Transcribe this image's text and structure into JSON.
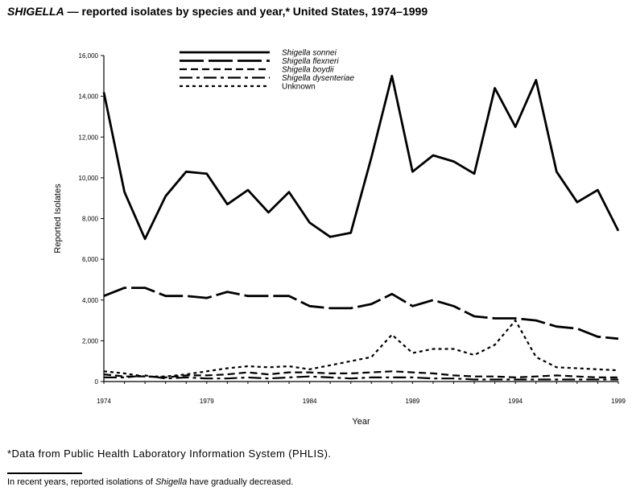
{
  "title": {
    "species_word": "SHIGELLA",
    "rest": " — reported isolates by species and year,* United States, 1974–1999"
  },
  "footnote": "*Data from Public Health Laboratory Information System (PHLIS).",
  "summary": {
    "before": "In recent years, reported isolations of ",
    "italic": "Shigella",
    "after": " have gradually decreased."
  },
  "chart_data": {
    "type": "line",
    "title": "SHIGELLA — reported isolates by species and year,* United States, 1974–1999",
    "xlabel": "Year",
    "ylabel": "Reported Isolates",
    "xlim": [
      1974,
      1999
    ],
    "ylim": [
      0,
      16000
    ],
    "x_ticks": [
      1974,
      1979,
      1984,
      1989,
      1994,
      1999
    ],
    "y_ticks": [
      0,
      2000,
      4000,
      6000,
      8000,
      10000,
      12000,
      14000,
      16000
    ],
    "y_tick_labels": [
      "0",
      "2,000",
      "4,000",
      "6,000",
      "8,000",
      "10,000",
      "12,000",
      "14,000",
      "16,000"
    ],
    "legend_position": "top-center",
    "grid": false,
    "x": [
      1974,
      1975,
      1976,
      1977,
      1978,
      1979,
      1980,
      1981,
      1982,
      1983,
      1984,
      1985,
      1986,
      1987,
      1988,
      1989,
      1990,
      1991,
      1992,
      1993,
      1994,
      1995,
      1996,
      1997,
      1998,
      1999
    ],
    "series": [
      {
        "name": "Shigella sonnei",
        "style": "solid",
        "values": [
          14200,
          9300,
          7000,
          9100,
          10300,
          10200,
          8700,
          9400,
          8300,
          9300,
          7800,
          7100,
          7300,
          11000,
          15000,
          10300,
          11100,
          10800,
          10200,
          14400,
          12500,
          14800,
          10300,
          8800,
          9400,
          7400
        ]
      },
      {
        "name": "Shigella flexneri",
        "style": "longdash",
        "values": [
          4200,
          4600,
          4600,
          4200,
          4200,
          4100,
          4400,
          4200,
          4200,
          4200,
          3700,
          3600,
          3600,
          3800,
          4300,
          3700,
          4000,
          3700,
          3200,
          3100,
          3100,
          3000,
          2700,
          2600,
          2200,
          2100
        ]
      },
      {
        "name": "Shigella boydii",
        "style": "dash",
        "values": [
          350,
          250,
          250,
          200,
          300,
          300,
          350,
          450,
          350,
          450,
          450,
          400,
          400,
          450,
          500,
          450,
          400,
          300,
          250,
          250,
          200,
          250,
          300,
          250,
          200,
          200
        ]
      },
      {
        "name": "Shigella dysenteriae",
        "style": "dashdot",
        "values": [
          200,
          200,
          300,
          150,
          200,
          150,
          150,
          200,
          150,
          200,
          250,
          200,
          150,
          200,
          200,
          200,
          150,
          150,
          100,
          100,
          100,
          100,
          100,
          100,
          100,
          100
        ]
      },
      {
        "name": "Unknown",
        "style": "shortdash",
        "values": [
          500,
          400,
          250,
          250,
          350,
          500,
          650,
          750,
          700,
          750,
          600,
          800,
          1000,
          1200,
          2300,
          1400,
          1600,
          1600,
          1300,
          1800,
          3000,
          1200,
          700,
          650,
          600,
          550
        ]
      }
    ]
  }
}
